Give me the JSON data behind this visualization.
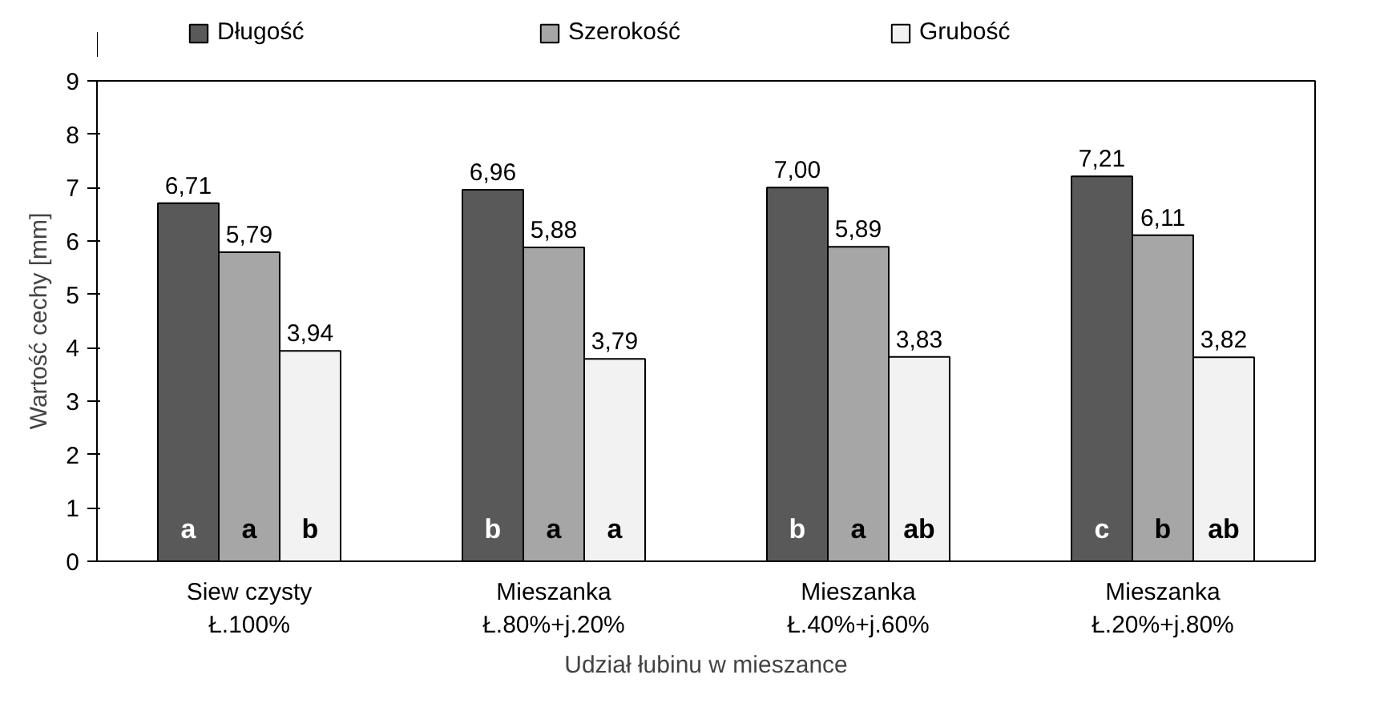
{
  "chart_data": {
    "type": "bar",
    "xlabel": "Udział łubinu w mieszance",
    "ylabel": "Wartość cechy [mm]",
    "categories": [
      "Siew czysty\nŁ.100%",
      "Mieszanka\nŁ.80%+j.20%",
      "Mieszanka\nŁ.40%+j.60%",
      "Mieszanka\nŁ.20%+j.80%"
    ],
    "series": [
      {
        "name": "Długość",
        "color": "#595959",
        "values": [
          6.71,
          6.96,
          7.0,
          7.21
        ],
        "value_labels": [
          "6,71",
          "6,96",
          "7,00",
          "7,21"
        ]
      },
      {
        "name": "Szerokość",
        "color": "#a6a6a6",
        "values": [
          5.79,
          5.88,
          5.89,
          6.11
        ],
        "value_labels": [
          "5,79",
          "5,88",
          "5,89",
          "6,11"
        ]
      },
      {
        "name": "Grubość",
        "color": "#f2f2f2",
        "values": [
          3.94,
          3.79,
          3.83,
          3.82
        ],
        "value_labels": [
          "3,94",
          "3,79",
          "3,83",
          "3,82"
        ]
      }
    ],
    "annotations": [
      "a",
      "a",
      "b",
      "b",
      "a",
      "a",
      "b",
      "a",
      "ab",
      "c",
      "b",
      "ab"
    ],
    "ylim": [
      0,
      9
    ],
    "yticks": [
      0,
      1,
      2,
      3,
      4,
      5,
      6,
      7,
      8,
      9
    ],
    "grid": false,
    "legend": "top"
  }
}
